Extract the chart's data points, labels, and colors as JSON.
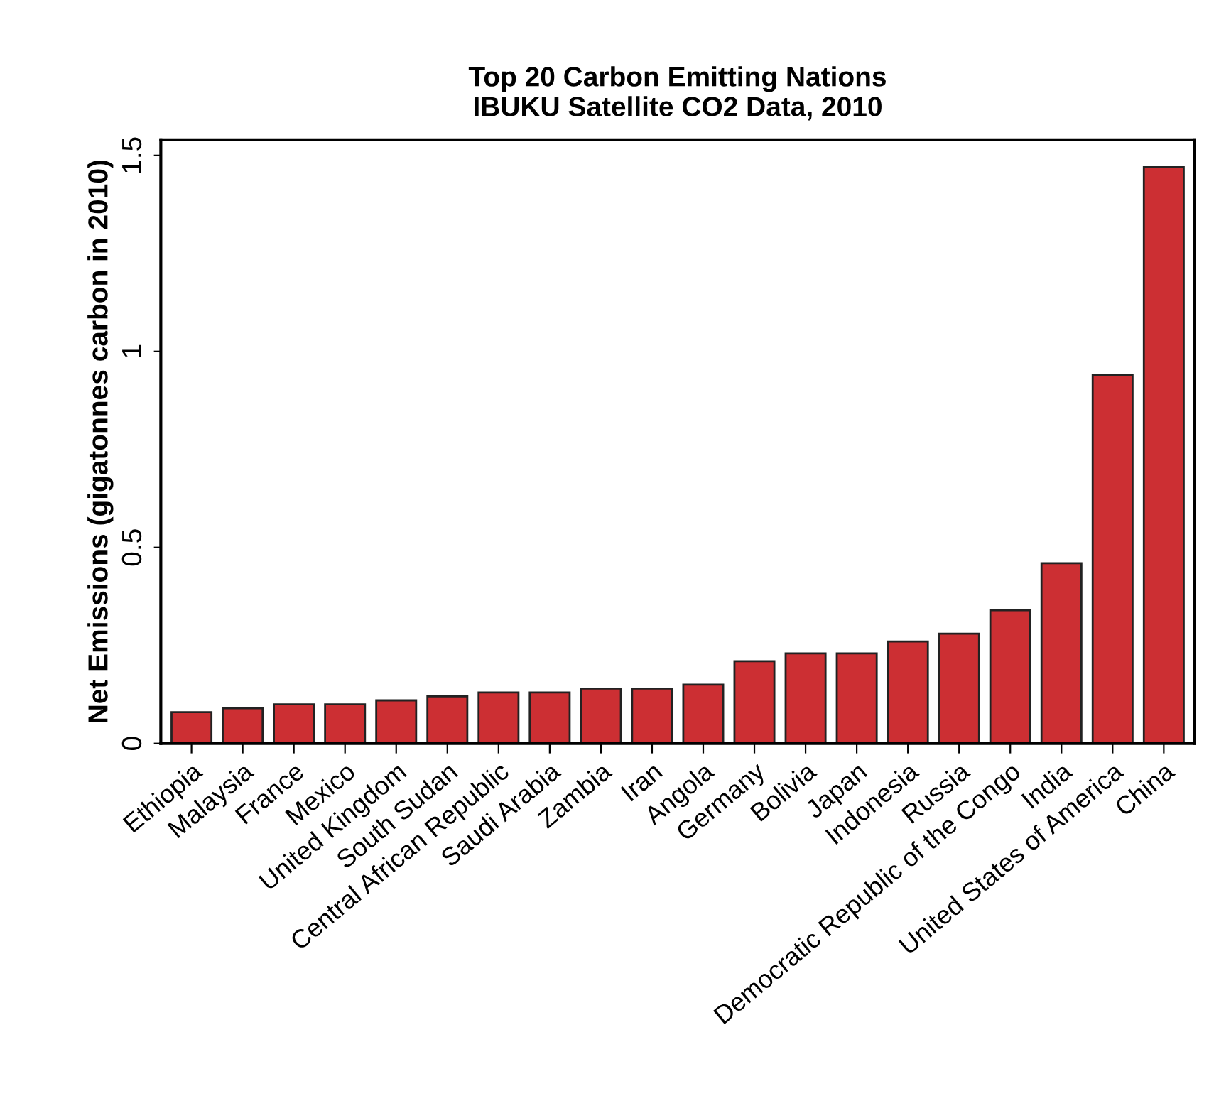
{
  "chart_data": {
    "type": "bar",
    "title": "Top 20 Carbon Emitting Nations\nIBUKU Satellite CO2 Data, 2010",
    "ylabel": "Net Emissions (gigatonnes carbon in 2010)",
    "categories": [
      "Ethiopia",
      "Malaysia",
      "France",
      "Mexico",
      "United Kingdom",
      "South Sudan",
      "Central African Republic",
      "Saudi Arabia",
      "Zambia",
      "Iran",
      "Angola",
      "Germany",
      "Bolivia",
      "Japan",
      "Indonesia",
      "Russia",
      "Democratic Republic of the Congo",
      "India",
      "United States of America",
      "China"
    ],
    "values": [
      0.08,
      0.09,
      0.1,
      0.1,
      0.11,
      0.12,
      0.13,
      0.13,
      0.14,
      0.14,
      0.15,
      0.21,
      0.23,
      0.23,
      0.26,
      0.28,
      0.34,
      0.46,
      0.94,
      1.47
    ],
    "color": "#cc2f33",
    "ylim": [
      0,
      1.54
    ],
    "yticks": [
      0,
      0.5,
      1,
      1.5
    ],
    "grid": false,
    "legend": false
  }
}
